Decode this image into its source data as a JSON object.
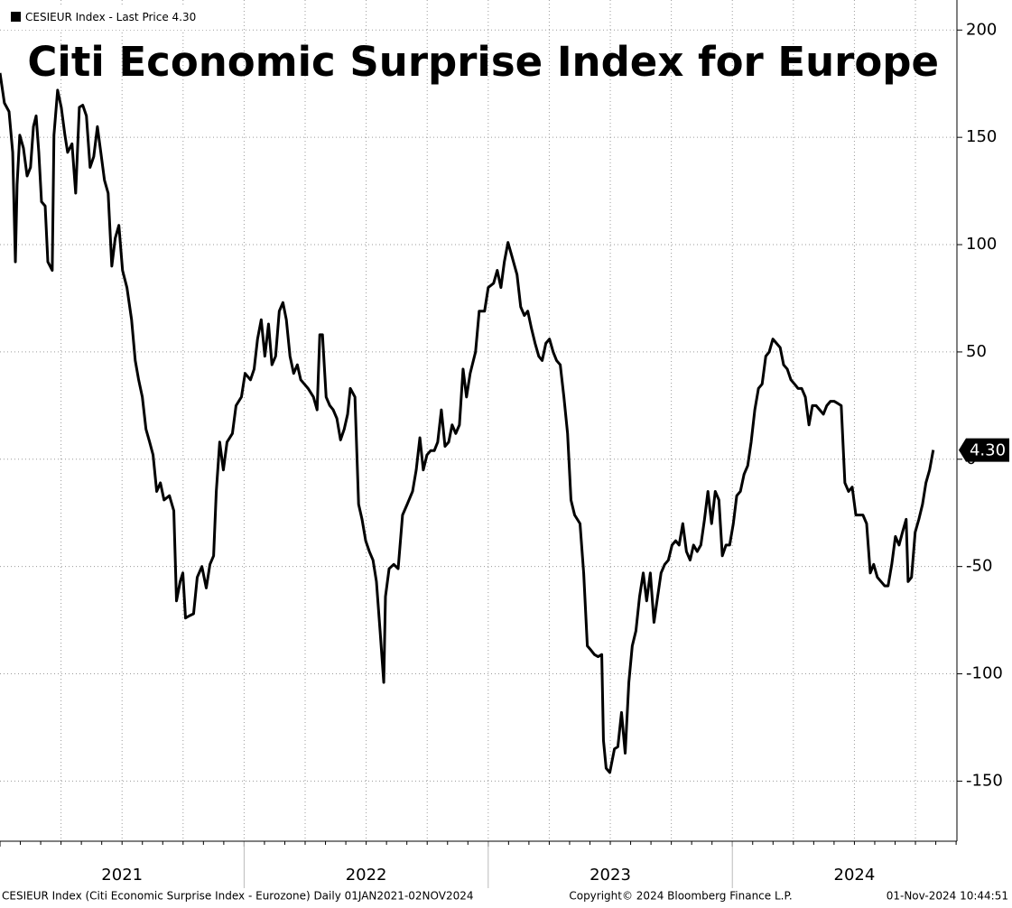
{
  "chart_data": {
    "type": "line",
    "title": "Citi Economic Surprise Index for Europe",
    "series": [
      {
        "name": "CESIEUR Index - Last Price",
        "color": "#000000",
        "values": [
          180,
          166,
          162,
          143,
          92,
          128,
          151,
          145,
          132,
          136,
          155,
          160,
          143,
          120,
          118,
          92,
          88,
          151,
          172,
          164,
          151,
          143,
          147,
          124,
          164,
          165,
          160,
          136,
          141,
          155,
          143,
          130,
          124,
          90,
          103,
          109,
          88,
          80,
          65,
          46,
          37,
          29,
          14,
          8,
          2,
          -15,
          -11,
          -19,
          -17,
          -24,
          -66,
          -57,
          -53,
          -74,
          -73,
          -72,
          -55,
          -50,
          -60,
          -49,
          -45,
          -15,
          8,
          -5,
          8,
          12,
          25,
          29,
          40,
          37,
          42,
          56,
          65,
          48,
          63,
          44,
          48,
          69,
          73,
          65,
          48,
          40,
          44,
          37,
          35,
          33,
          29,
          23,
          58,
          58,
          29,
          25,
          23,
          19,
          9,
          14,
          21,
          33,
          29,
          -21,
          -28,
          -38,
          -43,
          -47,
          -57,
          -80,
          -104,
          -64,
          -51,
          -49,
          -51,
          -26,
          -21,
          -15,
          -5,
          10,
          -5,
          2,
          4,
          4,
          8,
          23,
          6,
          8,
          16,
          12,
          16,
          42,
          29,
          40,
          50,
          69,
          69,
          80,
          82,
          88,
          80,
          92,
          101,
          95,
          86,
          71,
          67,
          69,
          61,
          54,
          48,
          46,
          54,
          56,
          50,
          46,
          44,
          29,
          12,
          -19,
          -26,
          -30,
          -53,
          -87,
          -89,
          -91,
          -92,
          -91,
          -131,
          -144,
          -146,
          -135,
          -134,
          -118,
          -137,
          -104,
          -87,
          -80,
          -64,
          -53,
          -66,
          -53,
          -76,
          -64,
          -53,
          -49,
          -47,
          -40,
          -38,
          -40,
          -30,
          -43,
          -47,
          -40,
          -43,
          -40,
          -28,
          -15,
          -30,
          -15,
          -19,
          -45,
          -40,
          -40,
          -30,
          -17,
          -15,
          -7,
          -3,
          8,
          23,
          33,
          35,
          48,
          50,
          56,
          54,
          52,
          44,
          42,
          37,
          35,
          33,
          33,
          29,
          16,
          25,
          25,
          23,
          21,
          25,
          27,
          27,
          26,
          25,
          -11,
          -15,
          -13,
          -26,
          -26,
          -26,
          -30,
          -53,
          -49,
          -55,
          -57,
          -59,
          -59,
          -49,
          -36,
          -40,
          -34,
          -28,
          -57,
          -55,
          -34,
          -28,
          -21,
          -11,
          -5,
          4.3
        ]
      }
    ],
    "x": [
      2021.0,
      2021.018,
      2021.037,
      2021.052,
      2021.063,
      2021.07,
      2021.081,
      2021.096,
      2021.111,
      2021.125,
      2021.137,
      2021.148,
      2021.159,
      2021.17,
      2021.185,
      2021.196,
      2021.214,
      2021.221,
      2021.236,
      2021.251,
      2021.266,
      2021.277,
      2021.295,
      2021.31,
      2021.325,
      2021.339,
      2021.354,
      2021.369,
      2021.384,
      2021.399,
      2021.413,
      2021.428,
      2021.443,
      2021.458,
      2021.472,
      2021.487,
      2021.502,
      2021.52,
      2021.539,
      2021.554,
      2021.568,
      2021.583,
      2021.598,
      2021.613,
      2021.627,
      2021.642,
      2021.657,
      2021.672,
      2021.694,
      2021.712,
      2021.723,
      2021.738,
      2021.749,
      2021.76,
      2021.775,
      2021.793,
      2021.808,
      2021.827,
      2021.845,
      2021.86,
      2021.875,
      2021.886,
      2021.9,
      2021.915,
      2021.93,
      2021.952,
      2021.967,
      2021.989,
      2022.004,
      2022.026,
      2022.041,
      2022.055,
      2022.07,
      2022.085,
      2022.1,
      2022.114,
      2022.129,
      2022.144,
      2022.159,
      2022.173,
      2022.188,
      2022.203,
      2022.218,
      2022.232,
      2022.247,
      2022.262,
      2022.284,
      2022.299,
      2022.31,
      2022.321,
      2022.336,
      2022.351,
      2022.365,
      2022.38,
      2022.395,
      2022.41,
      2022.424,
      2022.435,
      2022.454,
      2022.469,
      2022.483,
      2022.498,
      2022.513,
      2022.528,
      2022.542,
      2022.557,
      2022.572,
      2022.579,
      2022.594,
      2022.613,
      2022.631,
      2022.649,
      2022.668,
      2022.69,
      2022.705,
      2022.72,
      2022.734,
      2022.749,
      2022.764,
      2022.779,
      2022.793,
      2022.808,
      2022.823,
      2022.838,
      2022.852,
      2022.867,
      2022.882,
      2022.897,
      2022.911,
      2022.926,
      2022.948,
      2022.963,
      2022.985,
      2023.0,
      2023.022,
      2023.037,
      2023.052,
      2023.066,
      2023.081,
      2023.096,
      2023.118,
      2023.133,
      2023.148,
      2023.162,
      2023.177,
      2023.192,
      2023.207,
      2023.221,
      2023.236,
      2023.251,
      2023.266,
      2023.28,
      2023.295,
      2023.31,
      2023.325,
      2023.339,
      2023.354,
      2023.376,
      2023.391,
      2023.406,
      2023.421,
      2023.435,
      2023.45,
      2023.465,
      2023.472,
      2023.483,
      2023.498,
      2023.517,
      2023.531,
      2023.546,
      2023.561,
      2023.576,
      2023.59,
      2023.605,
      2023.62,
      2023.635,
      2023.649,
      2023.664,
      2023.679,
      2023.694,
      2023.708,
      2023.723,
      2023.738,
      2023.753,
      2023.768,
      2023.782,
      2023.797,
      2023.812,
      2023.827,
      2023.841,
      2023.856,
      2023.871,
      2023.886,
      2023.9,
      2023.915,
      2023.93,
      2023.945,
      2023.959,
      2023.974,
      2023.989,
      2024.004,
      2024.018,
      2024.033,
      2024.048,
      2024.063,
      2024.077,
      2024.092,
      2024.107,
      2024.122,
      2024.137,
      2024.151,
      2024.166,
      2024.181,
      2024.196,
      2024.21,
      2024.225,
      2024.24,
      2024.255,
      2024.269,
      2024.284,
      2024.299,
      2024.314,
      2024.328,
      2024.343,
      2024.358,
      2024.373,
      2024.387,
      2024.402,
      2024.417,
      2024.432,
      2024.446,
      2024.461,
      2024.476,
      2024.491,
      2024.506,
      2024.52,
      2024.535,
      2024.55,
      2024.565,
      2024.579,
      2024.594,
      2024.609,
      2024.624,
      2024.638,
      2024.653,
      2024.668,
      2024.683,
      2024.697,
      2024.712,
      2024.72,
      2024.734,
      2024.749,
      2024.764,
      2024.779,
      2024.793,
      2024.808,
      2024.823
    ],
    "xlim": [
      2021.0,
      2024.92
    ],
    "xticks": [
      2021,
      2022,
      2023,
      2024
    ],
    "ylim": [
      -178,
      214
    ],
    "yticks": [
      200,
      150,
      100,
      50,
      0,
      -50,
      -100,
      -150
    ],
    "last_price": {
      "value": 4.3,
      "label": "4.30"
    },
    "grid": true,
    "footer": {
      "description": "CESIEUR Index (Citi Economic Surprise Index - Eurozone)  Daily 01JAN2021-02NOV2024",
      "copyright": "Copyright© 2024 Bloomberg Finance L.P.",
      "timestamp": "01-Nov-2024 10:44:51"
    }
  }
}
